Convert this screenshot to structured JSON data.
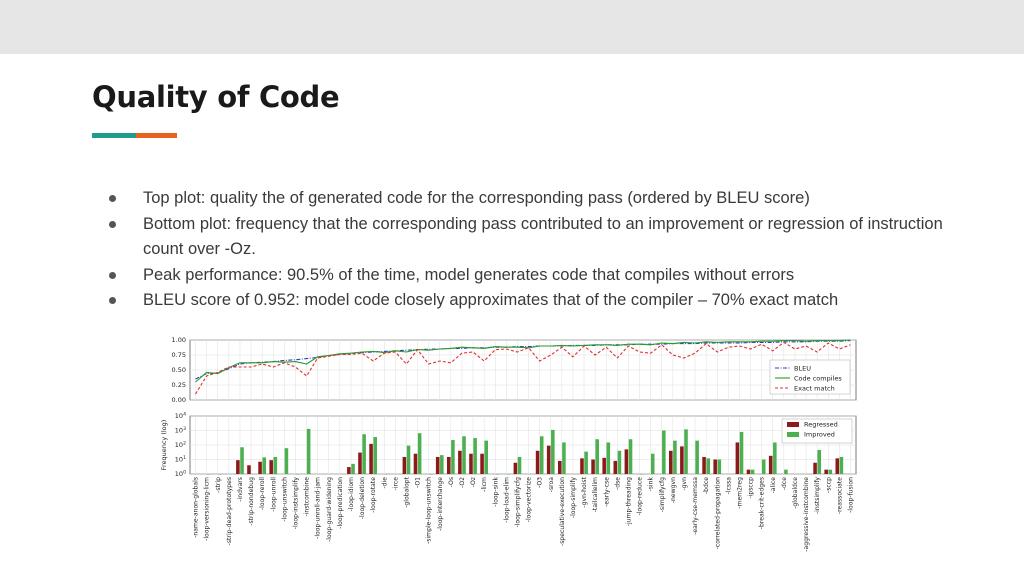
{
  "slide": {
    "title": "Quality of Code",
    "colors": {
      "accent_teal": "#1f9c8c",
      "accent_orange": "#e8621f",
      "top_band": "#e6e6e6"
    },
    "bullets": [
      "Top plot: quality the of generated code for the corresponding pass (ordered by BLEU score)",
      "Bottom plot: frequency that the corresponding pass contributed to an improvement or regression of instruction count over -Oz.",
      "Peak performance: 90.5% of the time, model generates code that compiles without errors",
      "BLEU score of 0.952: model code closely approximates that of the compiler – 70%  exact match"
    ]
  },
  "chart_data": [
    {
      "type": "line",
      "categories": [
        "-name-anon-globals",
        "-loop-versioning-licm",
        "-strip",
        "-strip-dead-prototypes",
        "-indvars",
        "-strip-nondebug",
        "-loop-reroll",
        "-loop-unroll",
        "-loop-unswitch",
        "-loop-instsimplify",
        "-instcombine",
        "-loop-unroll-and-jam",
        "-loop-guard-widening",
        "-loop-predication",
        "-loop-idiom",
        "-loop-deletion",
        "-loop-rotate",
        "-die",
        "-irce",
        "-globalopt",
        "-O1",
        "-simple-loop-unswitch",
        "-loop-interchange",
        "-Os",
        "-O2",
        "-Oz",
        "-licm",
        "-loop-sink",
        "-loop-load-elim",
        "-loop-simplifycfg",
        "-loop-vectorize",
        "-O3",
        "-sroa",
        "-speculative-execution",
        "-loop-simplify",
        "-gvn-hoist",
        "-tailcallelim",
        "-early-cse",
        "-dse",
        "-jump-threading",
        "-loop-reduce",
        "-sink",
        "-simplifycfg",
        "-newgvn",
        "-gvn",
        "-early-cse-memssa",
        "-bdce",
        "-correlated-propagation",
        "-lcssa",
        "-mem2reg",
        "-ipsccp",
        "-break-crit-edges",
        "-alice",
        "-dce",
        "-globaldce",
        "-aggressive-instcombine",
        "-instsimplify",
        "-sccp",
        "-reassociate",
        "-loop-fusion"
      ],
      "yticks": [
        "0.00",
        "0.25",
        "0.50",
        "0.75",
        "1.00"
      ],
      "ylim": [
        0,
        1
      ],
      "series": [
        {
          "name": "BLEU",
          "color": "#3a3ac8",
          "style": "dashdot",
          "values": [
            0.35,
            0.44,
            0.45,
            0.52,
            0.6,
            0.62,
            0.63,
            0.64,
            0.66,
            0.67,
            0.69,
            0.71,
            0.74,
            0.76,
            0.78,
            0.79,
            0.8,
            0.81,
            0.82,
            0.83,
            0.84,
            0.845,
            0.85,
            0.86,
            0.86,
            0.87,
            0.87,
            0.88,
            0.88,
            0.89,
            0.89,
            0.9,
            0.9,
            0.9,
            0.91,
            0.91,
            0.91,
            0.92,
            0.92,
            0.92,
            0.93,
            0.93,
            0.93,
            0.94,
            0.94,
            0.94,
            0.95,
            0.95,
            0.95,
            0.95,
            0.96,
            0.96,
            0.96,
            0.97,
            0.97,
            0.97,
            0.98,
            0.98,
            0.98,
            0.99
          ]
        },
        {
          "name": "Code compiles",
          "color": "#2a9a2a",
          "style": "solid",
          "values": [
            0.3,
            0.46,
            0.44,
            0.54,
            0.62,
            0.62,
            0.62,
            0.64,
            0.63,
            0.64,
            0.6,
            0.72,
            0.74,
            0.77,
            0.78,
            0.8,
            0.81,
            0.79,
            0.82,
            0.8,
            0.84,
            0.83,
            0.85,
            0.86,
            0.88,
            0.87,
            0.86,
            0.89,
            0.88,
            0.88,
            0.87,
            0.9,
            0.9,
            0.91,
            0.9,
            0.91,
            0.92,
            0.92,
            0.91,
            0.93,
            0.93,
            0.92,
            0.95,
            0.94,
            0.96,
            0.95,
            0.97,
            0.96,
            0.97,
            0.97,
            0.97,
            0.98,
            0.98,
            0.99,
            0.99,
            0.98,
            0.99,
            0.99,
            0.99,
            1.0
          ]
        },
        {
          "name": "Exact match",
          "color": "#e03030",
          "style": "dashed",
          "values": [
            0.1,
            0.4,
            0.46,
            0.55,
            0.55,
            0.55,
            0.6,
            0.55,
            0.62,
            0.55,
            0.4,
            0.7,
            0.73,
            0.76,
            0.76,
            0.78,
            0.65,
            0.78,
            0.8,
            0.6,
            0.84,
            0.6,
            0.65,
            0.62,
            0.78,
            0.8,
            0.65,
            0.84,
            0.85,
            0.8,
            0.87,
            0.65,
            0.75,
            0.88,
            0.72,
            0.9,
            0.75,
            0.88,
            0.7,
            0.9,
            0.8,
            0.78,
            0.92,
            0.75,
            0.7,
            0.78,
            0.94,
            0.8,
            0.88,
            0.9,
            0.85,
            0.93,
            0.82,
            0.96,
            0.85,
            0.9,
            0.8,
            0.95,
            0.85,
            0.92
          ]
        }
      ],
      "legend": "bottom-right",
      "grid": true
    },
    {
      "type": "bar",
      "ylabel": "Frequency (log)",
      "yscale": "log",
      "yticks": [
        {
          "base": "10",
          "exp": "0"
        },
        {
          "base": "10",
          "exp": "1"
        },
        {
          "base": "10",
          "exp": "2"
        },
        {
          "base": "10",
          "exp": "3"
        },
        {
          "base": "10",
          "exp": "4"
        }
      ],
      "categories_ref": "same as top plot",
      "series": [
        {
          "name": "Regressed",
          "color": "#8b1a1a",
          "values": [
            0,
            0,
            0,
            0,
            9,
            4,
            7,
            9,
            0,
            0,
            0,
            0,
            0,
            0,
            3,
            30,
            120,
            0,
            0,
            15,
            25,
            0,
            15,
            15,
            40,
            25,
            25,
            0,
            0,
            6,
            0,
            40,
            90,
            8,
            0,
            12,
            10,
            13,
            8,
            50,
            0,
            0,
            0,
            40,
            80,
            0,
            15,
            10,
            0,
            150,
            2,
            0,
            18,
            0,
            0,
            0,
            6,
            2,
            12,
            0
          ]
        },
        {
          "name": "Improved",
          "color": "#4caf50",
          "values": [
            0,
            1,
            1,
            0,
            70,
            0,
            14,
            15,
            60,
            1,
            1300,
            0,
            0,
            0,
            5,
            550,
            350,
            1,
            0,
            90,
            650,
            1,
            20,
            220,
            400,
            300,
            200,
            1,
            1,
            15,
            0,
            400,
            1100,
            150,
            0,
            35,
            250,
            150,
            40,
            250,
            1,
            25,
            1000,
            200,
            1200,
            200,
            12,
            10,
            0,
            800,
            2,
            10,
            150,
            2,
            0,
            0,
            45,
            2,
            15,
            0
          ]
        }
      ],
      "legend": "top-right",
      "grid": true
    }
  ]
}
